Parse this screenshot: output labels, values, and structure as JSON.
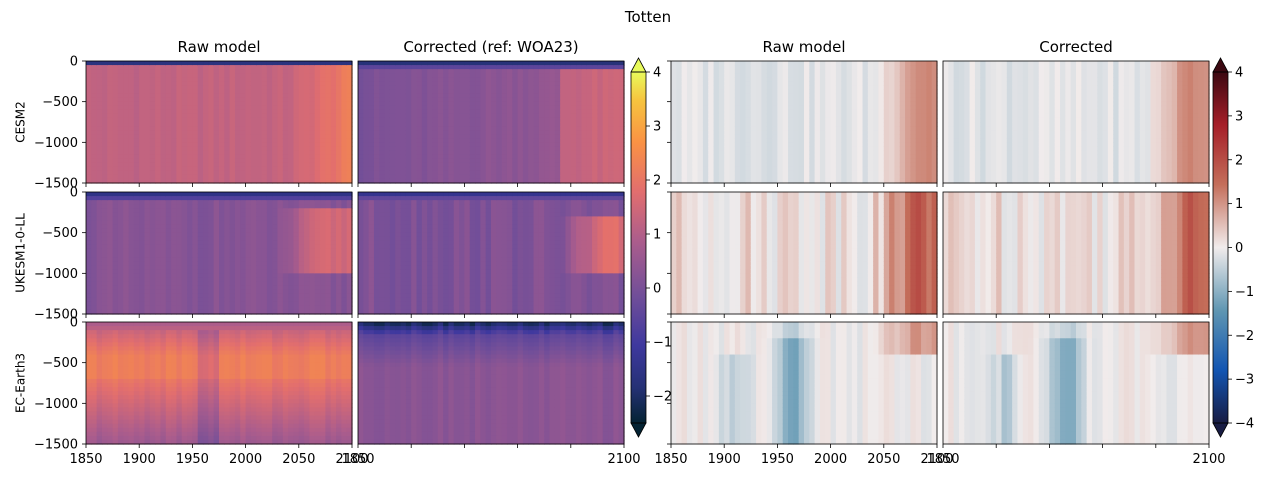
{
  "figure": {
    "title": "Totten"
  },
  "columns": [
    {
      "title": "Raw model",
      "cmap": "thermal"
    },
    {
      "title": "Corrected (ref: WOA23)",
      "cmap": "thermal"
    },
    {
      "title": "Raw model",
      "cmap": "balance"
    },
    {
      "title": "Corrected",
      "cmap": "balance"
    }
  ],
  "rows": [
    {
      "label": "CESM2"
    },
    {
      "label": "UKESM1-0-LL"
    },
    {
      "label": "EC-Earth3"
    }
  ],
  "axes": {
    "x_ticks": [
      1850,
      1900,
      1950,
      2000,
      2050,
      2100
    ],
    "x_tick_labels": [
      "1850",
      "1900",
      "1950",
      "2000",
      "2050",
      "2100",
      "1850",
      "2100"
    ],
    "xlim": [
      1850,
      2100
    ],
    "y_ticks": [
      0,
      -500,
      -1000,
      -1500
    ],
    "y_tick_labels": [
      "0",
      "−500",
      "−1000",
      "−1500"
    ],
    "ylim": [
      -1500,
      0
    ]
  },
  "colorbars": [
    {
      "name": "temperature",
      "range": [
        -2.5,
        4
      ],
      "ticks": [
        4,
        3,
        2,
        1,
        0,
        -1,
        -2
      ],
      "tick_labels": [
        "4",
        "3",
        "2",
        "1",
        "0",
        "−1",
        "−2"
      ],
      "extend": "both",
      "label_style": "clipped"
    },
    {
      "name": "anomaly",
      "range": [
        -4,
        4
      ],
      "ticks": [
        4,
        3,
        2,
        1,
        0,
        -1,
        -2,
        -3,
        -4
      ],
      "tick_labels": [
        "4",
        "3",
        "2",
        "1",
        "0",
        "−1",
        "−2",
        "−3",
        "−4"
      ],
      "extend": "both",
      "label_style": "normal"
    }
  ],
  "chart_data": [
    {
      "type": "heatmap",
      "row": "CESM2",
      "column": "Raw model",
      "x_range": [
        1850,
        2100
      ],
      "y_range": [
        -1500,
        0
      ],
      "description_values": {
        "surface": -1.5,
        "deep_early": 1.3,
        "deep_late": 2.0
      },
      "colorbar": "temperature"
    },
    {
      "type": "heatmap",
      "row": "CESM2",
      "column": "Corrected (ref: WOA23)",
      "x_range": [
        1850,
        2100
      ],
      "y_range": [
        -1500,
        0
      ],
      "description_values": {
        "surface": -1.8,
        "deep_early": 0.3,
        "deep_late": 1.2
      },
      "colorbar": "temperature"
    },
    {
      "type": "heatmap",
      "row": "CESM2",
      "column": "Raw model",
      "x_range": [
        1850,
        2100
      ],
      "y_range": [
        -1500,
        0
      ],
      "description_values": {
        "early": 0.0,
        "late": 1.2
      },
      "colorbar": "anomaly"
    },
    {
      "type": "heatmap",
      "row": "CESM2",
      "column": "Corrected",
      "x_range": [
        1850,
        2100
      ],
      "y_range": [
        -1500,
        0
      ],
      "description_values": {
        "early": -0.1,
        "late": 1.2
      },
      "colorbar": "anomaly"
    },
    {
      "type": "heatmap",
      "row": "UKESM1-0-LL",
      "column": "Raw model",
      "x_range": [
        1850,
        2100
      ],
      "y_range": [
        -1500,
        0
      ],
      "description_values": {
        "surface": -1.5,
        "deep_early": 0.3,
        "deep_late": 1.5
      },
      "colorbar": "temperature"
    },
    {
      "type": "heatmap",
      "row": "UKESM1-0-LL",
      "column": "Corrected (ref: WOA23)",
      "x_range": [
        1850,
        2100
      ],
      "y_range": [
        -1500,
        0
      ],
      "description_values": {
        "surface": -1.5,
        "deep_early": 0.2,
        "deep_late": 1.8
      },
      "colorbar": "temperature"
    },
    {
      "type": "heatmap",
      "row": "UKESM1-0-LL",
      "column": "Raw model",
      "x_range": [
        1850,
        2100
      ],
      "y_range": [
        -1500,
        0
      ],
      "description_values": {
        "early": 0.3,
        "late": 1.7
      },
      "colorbar": "anomaly"
    },
    {
      "type": "heatmap",
      "row": "UKESM1-0-LL",
      "column": "Corrected",
      "x_range": [
        1850,
        2100
      ],
      "y_range": [
        -1500,
        0
      ],
      "description_values": {
        "early": 0.3,
        "late": 1.6
      },
      "colorbar": "anomaly"
    },
    {
      "type": "heatmap",
      "row": "EC-Earth3",
      "column": "Raw model",
      "x_range": [
        1850,
        2100
      ],
      "y_range": [
        -1500,
        0
      ],
      "description_values": {
        "surface": 0.5,
        "mid": 2.0,
        "deep": 0.6
      },
      "colorbar": "temperature"
    },
    {
      "type": "heatmap",
      "row": "EC-Earth3",
      "column": "Corrected (ref: WOA23)",
      "x_range": [
        1850,
        2100
      ],
      "y_range": [
        -1500,
        0
      ],
      "description_values": {
        "surface": -1.8,
        "deep": 0.2
      },
      "colorbar": "temperature"
    },
    {
      "type": "heatmap",
      "row": "EC-Earth3",
      "column": "Raw model",
      "x_range": [
        1850,
        2100
      ],
      "y_range": [
        -1500,
        0
      ],
      "description_values": {
        "mid_century_min": -1.2,
        "late": 1.0
      },
      "colorbar": "anomaly"
    },
    {
      "type": "heatmap",
      "row": "EC-Earth3",
      "column": "Corrected",
      "x_range": [
        1850,
        2100
      ],
      "y_range": [
        -1500,
        0
      ],
      "description_values": {
        "mid_century_min": -1.0,
        "late": 1.1
      },
      "colorbar": "anomaly"
    }
  ]
}
